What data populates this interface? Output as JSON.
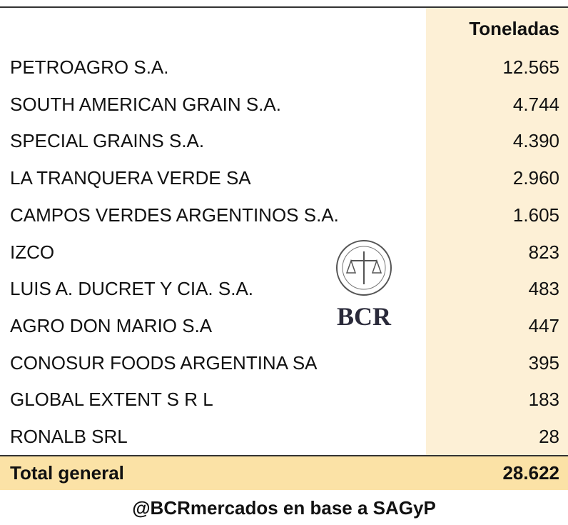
{
  "table": {
    "header": [
      "",
      "Toneladas"
    ],
    "rows": [
      [
        "PETROAGRO S.A.",
        "12.565"
      ],
      [
        "SOUTH AMERICAN GRAIN S.A.",
        "4.744"
      ],
      [
        "SPECIAL GRAINS S.A.",
        "4.390"
      ],
      [
        "LA TRANQUERA VERDE SA",
        "2.960"
      ],
      [
        "CAMPOS VERDES ARGENTINOS S.A.",
        "1.605"
      ],
      [
        "IZCO",
        "823"
      ],
      [
        "LUIS A. DUCRET Y CIA. S.A.",
        "483"
      ],
      [
        "AGRO DON MARIO S.A",
        "447"
      ],
      [
        "CONOSUR FOODS ARGENTINA SA",
        "395"
      ],
      [
        "GLOBAL EXTENT S R L",
        "183"
      ],
      [
        "RONALB SRL",
        "28"
      ]
    ],
    "total": [
      "Total general",
      "28.622"
    ]
  },
  "logo": {
    "text": "BCR"
  },
  "footer": "@BCRmercados en base a SAGyP"
}
